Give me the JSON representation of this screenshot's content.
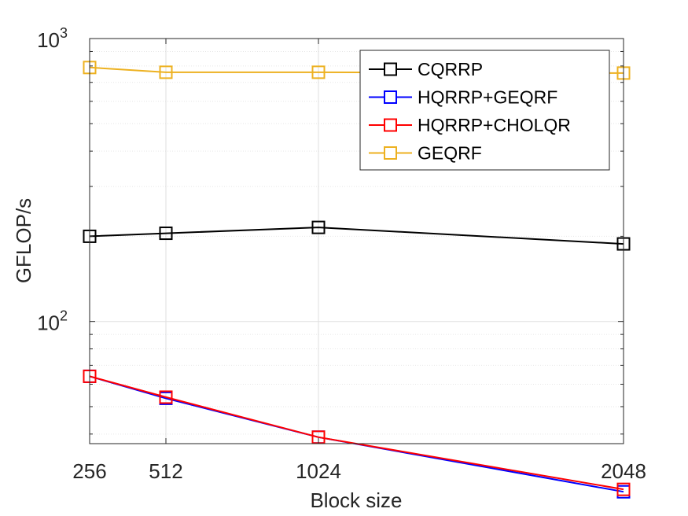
{
  "chart_data": {
    "type": "line",
    "title": "",
    "xlabel": "Block size",
    "ylabel": "GFLOP/s",
    "x": [
      256,
      512,
      1024,
      2048
    ],
    "x_tick_labels": [
      "256",
      "512",
      "1024",
      "2048"
    ],
    "xlim": [
      256,
      2048
    ],
    "y_scale": "log",
    "ylim": [
      37,
      1000
    ],
    "y_tick_labels": [
      {
        "base": "10",
        "exp": "2",
        "value": 100
      },
      {
        "base": "10",
        "exp": "3",
        "value": 1000
      }
    ],
    "grid": true,
    "legend_position": "top-right",
    "series": [
      {
        "name": "CQRRP",
        "color": "#000000",
        "marker": "square",
        "values": [
          200,
          205,
          215,
          188
        ]
      },
      {
        "name": "HQRRP+GEQRF",
        "color": "#0000ff",
        "marker": "square",
        "values": [
          64,
          53.5,
          39,
          25
        ]
      },
      {
        "name": "HQRRP+CHOLQR",
        "color": "#ff0000",
        "marker": "square",
        "values": [
          64,
          54,
          39,
          25.5
        ]
      },
      {
        "name": "GEQRF",
        "color": "#edb120",
        "marker": "square",
        "values": [
          790,
          760,
          760,
          755
        ]
      }
    ]
  }
}
